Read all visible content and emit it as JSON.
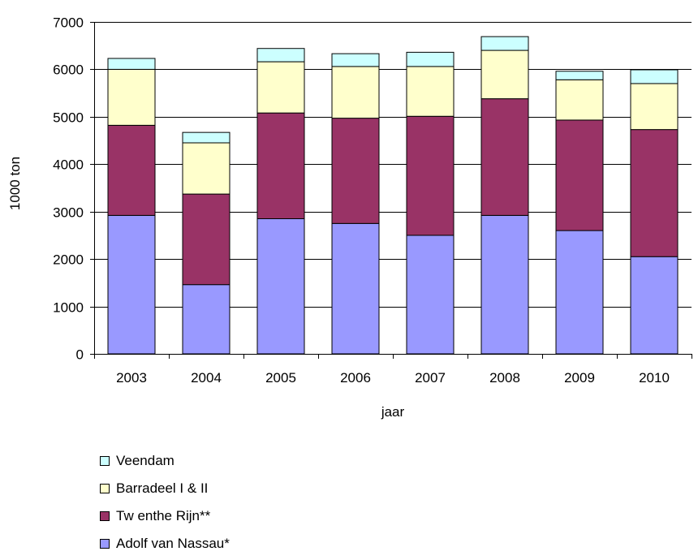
{
  "chart_data": {
    "type": "bar",
    "stacked": true,
    "title": "",
    "xlabel": "jaar",
    "ylabel": "1000 ton",
    "ylim": [
      0,
      7000
    ],
    "yticks": [
      0,
      1000,
      2000,
      3000,
      4000,
      5000,
      6000,
      7000
    ],
    "grid": true,
    "legend_position": "bottom",
    "categories": [
      "2003",
      "2004",
      "2005",
      "2006",
      "2007",
      "2008",
      "2009",
      "2010"
    ],
    "series": [
      {
        "name": "Adolf van Nassau*",
        "color": "#9999ff",
        "values": [
          2920,
          1460,
          2850,
          2750,
          2500,
          2920,
          2600,
          2050
        ]
      },
      {
        "name": "Tw enthe Rijn**",
        "color": "#993366",
        "values": [
          1900,
          1910,
          2230,
          2220,
          2510,
          2460,
          2330,
          2680
        ]
      },
      {
        "name": "Barradeel I & II",
        "color": "#ffffcc",
        "values": [
          1180,
          1080,
          1080,
          1090,
          1050,
          1020,
          850,
          970
        ]
      },
      {
        "name": "Veendam",
        "color": "#ccffff",
        "values": [
          230,
          220,
          280,
          270,
          300,
          290,
          180,
          290
        ]
      }
    ]
  },
  "legend_order": [
    3,
    2,
    1,
    0
  ]
}
